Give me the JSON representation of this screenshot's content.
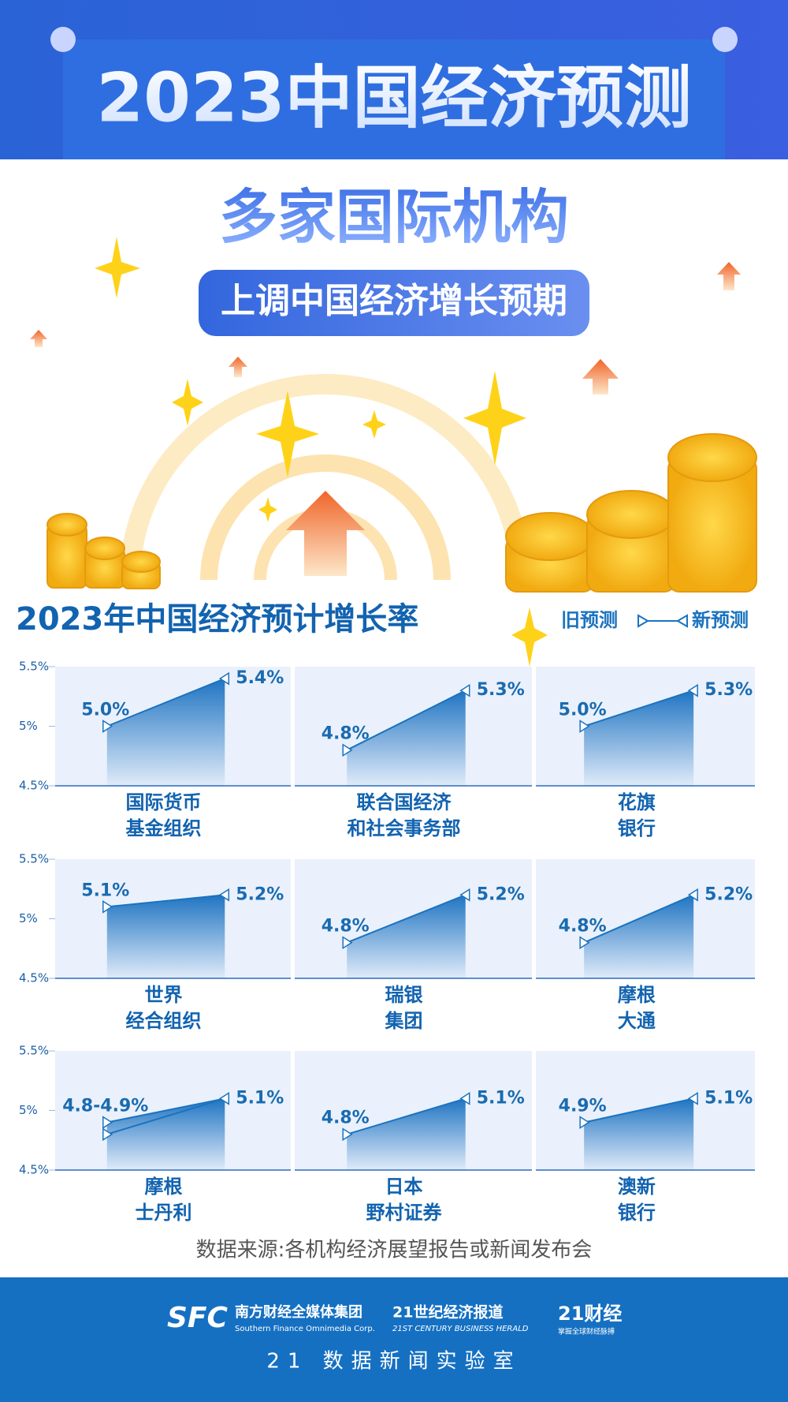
{
  "header": {
    "title": "2023中国经济预测",
    "headline": "多家国际机构",
    "subheadline": "上调中国经济增长预期"
  },
  "section_title": "2023年中国经济预计增长率",
  "legend": [
    "旧预测",
    "新预测"
  ],
  "color": "#1b73bf",
  "axis": {
    "ylim": [
      4.5,
      5.5
    ],
    "yticks": [
      {
        "value": 4.5,
        "label": "4.5%"
      },
      {
        "value": 5,
        "label": "5%"
      },
      {
        "value": 5.5,
        "label": "5.5%"
      }
    ]
  },
  "chart_data": [
    {
      "type": "area",
      "title": [
        "国际货币",
        "基金组织"
      ],
      "values": [
        5.0,
        5.4
      ],
      "value_labels": [
        "5.0%",
        "5.4%"
      ]
    },
    {
      "type": "area",
      "title": [
        "联合国经济",
        "和社会事务部"
      ],
      "values": [
        4.8,
        5.3
      ],
      "value_labels": [
        "4.8%",
        "5.3%"
      ]
    },
    {
      "type": "area",
      "title": [
        "花旗",
        "银行"
      ],
      "values": [
        5.0,
        5.3
      ],
      "value_labels": [
        "5.0%",
        "5.3%"
      ]
    },
    {
      "type": "area",
      "title": [
        "世界",
        "经合组织"
      ],
      "values": [
        5.1,
        5.2
      ],
      "value_labels": [
        "5.1%",
        "5.2%"
      ]
    },
    {
      "type": "area",
      "title": [
        "瑞银",
        "集团"
      ],
      "values": [
        4.8,
        5.2
      ],
      "value_labels": [
        "4.8%",
        "5.2%"
      ]
    },
    {
      "type": "area",
      "title": [
        "摩根",
        "大通"
      ],
      "values": [
        4.8,
        5.2
      ],
      "value_labels": [
        "4.8%",
        "5.2%"
      ]
    },
    {
      "type": "area",
      "title": [
        "摩根",
        "士丹利"
      ],
      "values": [
        4.9,
        5.1
      ],
      "low_values": [
        4.8,
        5.1
      ],
      "value_labels": [
        "4.8-4.9%",
        "5.1%"
      ]
    },
    {
      "type": "area",
      "title": [
        "日本",
        "野村证券"
      ],
      "values": [
        4.8,
        5.1
      ],
      "value_labels": [
        "4.8%",
        "5.1%"
      ]
    },
    {
      "type": "area",
      "title": [
        "澳新",
        "银行"
      ],
      "values": [
        4.9,
        5.1
      ],
      "value_labels": [
        "4.9%",
        "5.1%"
      ]
    }
  ],
  "source": "数据来源:各机构经济展望报告或新闻发布会",
  "footer": {
    "logo_sfc": "SFC",
    "logo_sfc_name": "南方财经全媒体集团",
    "logo_sfc_en": "Southern Finance Omnimedia Corp.",
    "logo_21": "21世纪经济报道",
    "logo_21_en": "21ST CENTURY BUSINESS HERALD",
    "logo_21cj": "21财经",
    "logo_21cj_sub": "掌握全球财经脉搏",
    "lab": "21 数据新闻实验室"
  }
}
